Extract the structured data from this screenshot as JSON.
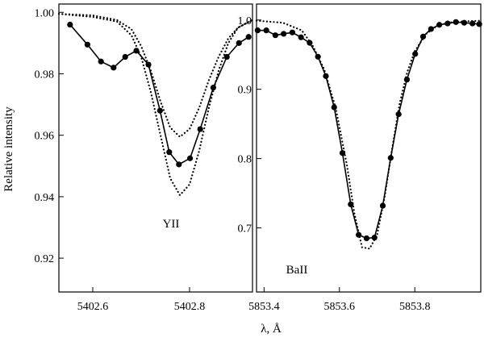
{
  "figure": {
    "ylabel": "Relative intensity",
    "xlabel": "λ, Å"
  },
  "chart_data": [
    {
      "type": "line",
      "annotation": "YII",
      "xlim": [
        5402.53,
        5402.93
      ],
      "ylim": [
        0.909,
        1.0027
      ],
      "xticks": [
        5402.6,
        5402.8
      ],
      "xtick_labels": [
        "5402.6",
        "5402.8"
      ],
      "yticks": [
        0.92,
        0.94,
        0.96,
        0.98,
        1.0
      ],
      "ytick_labels": [
        "0.92",
        "0.94",
        "0.96",
        "0.98",
        "1.00"
      ],
      "grid": false,
      "series": [
        {
          "style": "line-markers",
          "x": [
            5402.553,
            5402.589,
            5402.617,
            5402.643,
            5402.667,
            5402.69,
            5402.715,
            5402.739,
            5402.758,
            5402.778,
            5402.801,
            5402.822,
            5402.849,
            5402.877,
            5402.902,
            5402.922
          ],
          "y": [
            0.996,
            0.9895,
            0.984,
            0.982,
            0.9855,
            0.9875,
            0.983,
            0.968,
            0.9545,
            0.9505,
            0.9525,
            0.962,
            0.9755,
            0.9855,
            0.99,
            0.992
          ]
        },
        {
          "style": "dotted",
          "x": [
            5402.53,
            5402.6,
            5402.65,
            5402.68,
            5402.7,
            5402.72,
            5402.74,
            5402.76,
            5402.78,
            5402.8,
            5402.82,
            5402.84,
            5402.86,
            5402.88,
            5402.9,
            5402.93
          ],
          "y": [
            0.9995,
            0.9985,
            0.997,
            0.9925,
            0.9855,
            0.974,
            0.96,
            0.946,
            0.9405,
            0.944,
            0.955,
            0.969,
            0.981,
            0.99,
            0.995,
            0.9975
          ]
        },
        {
          "style": "dotted",
          "x": [
            5402.53,
            5402.6,
            5402.65,
            5402.68,
            5402.7,
            5402.72,
            5402.74,
            5402.76,
            5402.78,
            5402.8,
            5402.82,
            5402.84,
            5402.86,
            5402.88,
            5402.9,
            5402.93
          ],
          "y": [
            0.9995,
            0.999,
            0.9975,
            0.9945,
            0.989,
            0.981,
            0.971,
            0.9625,
            0.9595,
            0.962,
            0.969,
            0.978,
            0.9855,
            0.9915,
            0.995,
            0.9975
          ]
        }
      ]
    },
    {
      "type": "line",
      "annotation": "BaII",
      "xlim": [
        5853.38,
        5853.975
      ],
      "ylim": [
        0.6075,
        1.023
      ],
      "xticks": [
        5853.4,
        5853.6,
        5853.8
      ],
      "xtick_labels": [
        "5853.4",
        "5853.6",
        "5853.8"
      ],
      "yticks": [
        0.7,
        0.8,
        0.9,
        1.0
      ],
      "ytick_labels": [
        "0.7",
        "0.8",
        "0.9",
        "1.0"
      ],
      "grid": false,
      "series": [
        {
          "style": "line-markers",
          "x": [
            5853.383,
            5853.406,
            5853.43,
            5853.452,
            5853.475,
            5853.498,
            5853.521,
            5853.543,
            5853.564,
            5853.586,
            5853.608,
            5853.63,
            5853.651,
            5853.672,
            5853.693,
            5853.715,
            5853.736,
            5853.757,
            5853.779,
            5853.801,
            5853.822,
            5853.843,
            5853.865,
            5853.887,
            5853.909,
            5853.931,
            5853.953,
            5853.971
          ],
          "y": [
            0.985,
            0.985,
            0.978,
            0.98,
            0.982,
            0.975,
            0.967,
            0.947,
            0.919,
            0.874,
            0.808,
            0.734,
            0.69,
            0.685,
            0.686,
            0.732,
            0.801,
            0.864,
            0.914,
            0.951,
            0.976,
            0.987,
            0.993,
            0.995,
            0.997,
            0.996,
            0.995,
            0.994
          ]
        },
        {
          "style": "dotted",
          "x": [
            5853.38,
            5853.45,
            5853.5,
            5853.53,
            5853.56,
            5853.59,
            5853.62,
            5853.64,
            5853.66,
            5853.68,
            5853.7,
            5853.72,
            5853.74,
            5853.76,
            5853.78,
            5853.8,
            5853.83,
            5853.86,
            5853.9,
            5853.975
          ],
          "y": [
            0.999,
            0.996,
            0.985,
            0.962,
            0.928,
            0.873,
            0.79,
            0.72,
            0.672,
            0.67,
            0.69,
            0.745,
            0.815,
            0.88,
            0.925,
            0.955,
            0.98,
            0.992,
            0.997,
            0.999
          ]
        }
      ]
    }
  ]
}
